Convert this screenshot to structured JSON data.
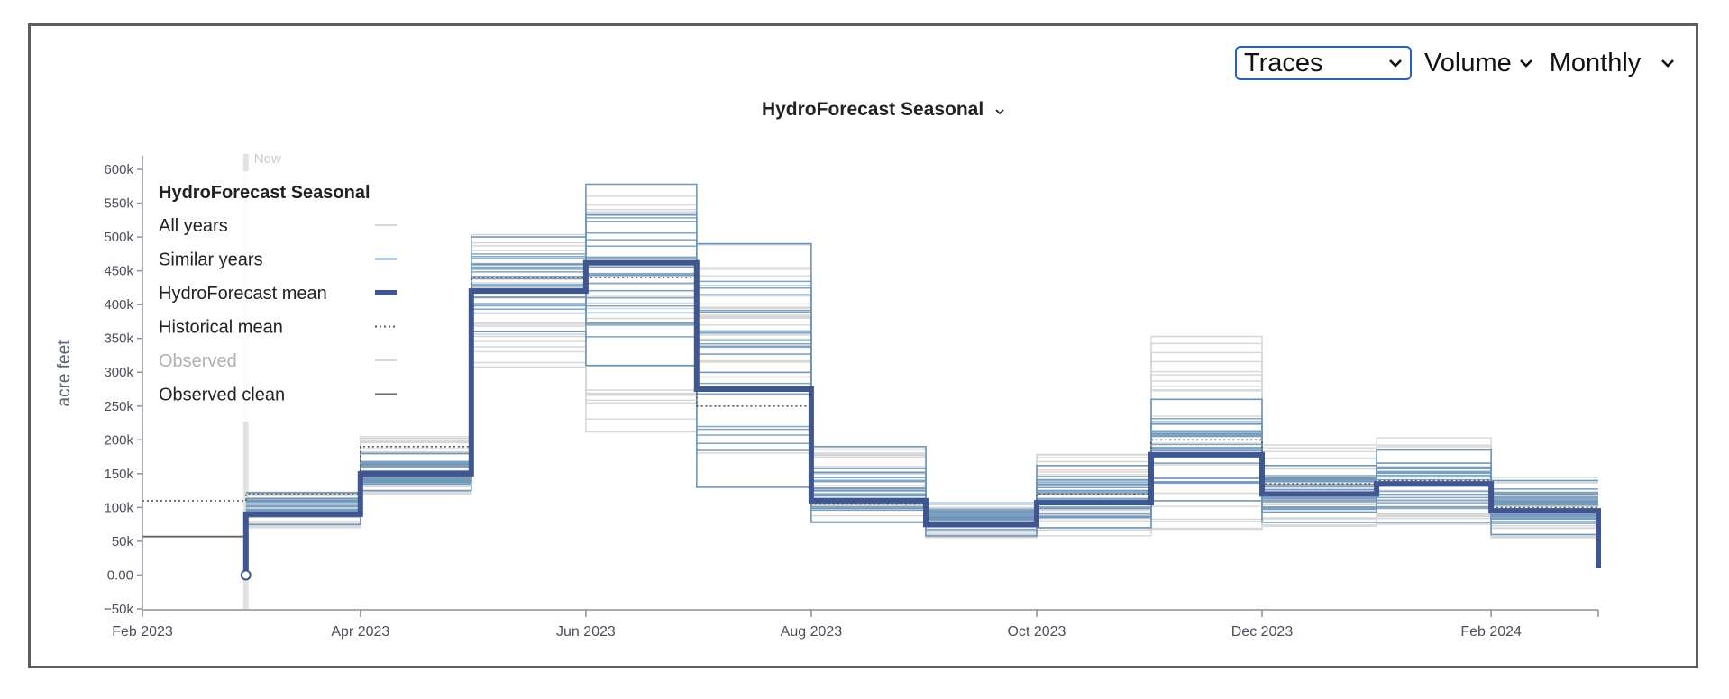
{
  "controls": {
    "view_select": {
      "value": "Traces"
    },
    "measure_select": {
      "value": "Volume"
    },
    "interval_select": {
      "value": "Monthly"
    }
  },
  "chart_data": {
    "type": "line",
    "subtype": "step",
    "title": "HydroForecast Seasonal",
    "ylabel": "acre feet",
    "ylim": [
      -50000,
      620000
    ],
    "yticks": [
      -50000,
      0,
      50000,
      100000,
      150000,
      200000,
      250000,
      300000,
      350000,
      400000,
      450000,
      500000,
      550000,
      600000
    ],
    "ytick_labels": [
      "−50k",
      "0.00",
      "50k",
      "100k",
      "150k",
      "200k",
      "250k",
      "300k",
      "350k",
      "400k",
      "450k",
      "500k",
      "550k",
      "600k"
    ],
    "xticks": [
      "2023-02-01",
      "2023-04-01",
      "2023-06-01",
      "2023-08-01",
      "2023-10-01",
      "2023-12-01",
      "2024-02-01"
    ],
    "xtick_labels": [
      "Feb 2023",
      "Apr 2023",
      "Jun 2023",
      "Aug 2023",
      "Oct 2023",
      "Dec 2023",
      "Feb 2024"
    ],
    "xlim": [
      "2023-02-01",
      "2024-03-01"
    ],
    "now_marker": {
      "date": "2023-03-01",
      "label": "Now"
    },
    "months": [
      "2023-03",
      "2023-04",
      "2023-05",
      "2023-06",
      "2023-07",
      "2023-08",
      "2023-09",
      "2023-10",
      "2023-11",
      "2023-12",
      "2024-01",
      "2024-02"
    ],
    "legend": {
      "title": "HydroForecast Seasonal",
      "position": "top-left",
      "entries": [
        {
          "label": "All years",
          "color": "#d6d6d6",
          "style": "solid"
        },
        {
          "label": "Similar years",
          "color": "#6f97ba",
          "style": "solid"
        },
        {
          "label": "HydroForecast mean",
          "color": "#3f5691",
          "style": "solid"
        },
        {
          "label": "Historical mean",
          "color": "#555555",
          "style": "dotted"
        },
        {
          "label": "Observed",
          "color": "#d8d8d8",
          "style": "solid",
          "faded": true
        },
        {
          "label": "Observed clean",
          "color": "#666666",
          "style": "solid"
        }
      ]
    },
    "series": [
      {
        "name": "HydroForecast mean",
        "color": "#3f5691",
        "values": [
          90000,
          150000,
          420000,
          462000,
          275000,
          110000,
          75000,
          107000,
          178000,
          120000,
          135000,
          95000
        ]
      },
      {
        "name": "Historical mean",
        "color": "#555555",
        "start_value": 110000,
        "values": [
          120000,
          190000,
          440000,
          440000,
          250000,
          105000,
          75000,
          120000,
          200000,
          135000,
          140000,
          100000
        ]
      },
      {
        "name": "Observed clean",
        "color": "#666666",
        "x": [
          "2023-02-01",
          "2023-03-01"
        ],
        "values": [
          57000,
          57000
        ]
      },
      {
        "name": "Similar years",
        "color": "#6f97ba",
        "range_low": [
          75000,
          125000,
          360000,
          310000,
          130000,
          78000,
          58000,
          70000,
          110000,
          78000,
          78000,
          60000
        ],
        "range_high": [
          122000,
          180000,
          500000,
          578000,
          490000,
          190000,
          105000,
          162000,
          260000,
          162000,
          185000,
          140000
        ]
      },
      {
        "name": "All years",
        "color": "#d6d6d6",
        "range_low": [
          70000,
          118000,
          305000,
          188000,
          122000,
          75000,
          55000,
          50000,
          50000,
          72000,
          75000,
          55000
        ],
        "range_high": [
          125000,
          210000,
          505000,
          580000,
          490000,
          190000,
          108000,
          190000,
          355000,
          200000,
          205000,
          145000
        ]
      }
    ]
  }
}
